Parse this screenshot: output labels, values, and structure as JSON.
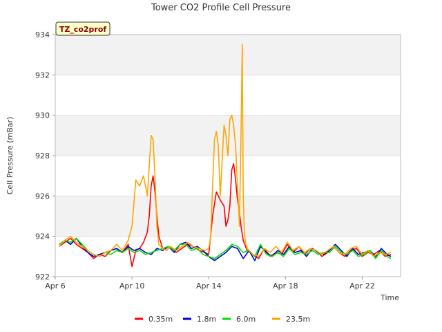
{
  "chart_data": {
    "type": "line",
    "title": "Tower CO2 Profile Cell Pressure",
    "xlabel": "Time",
    "ylabel": "Cell Pressure (mBar)",
    "site_tag": "TZ_co2prof",
    "xlim": [
      6,
      24
    ],
    "ylim": [
      922,
      934
    ],
    "x_ticks": [
      {
        "value": 6,
        "label": "Apr 6"
      },
      {
        "value": 10,
        "label": "Apr 10"
      },
      {
        "value": 14,
        "label": "Apr 14"
      },
      {
        "value": 18,
        "label": "Apr 18"
      },
      {
        "value": 22,
        "label": "Apr 22"
      }
    ],
    "y_ticks": [
      922,
      924,
      926,
      928,
      930,
      932,
      934
    ],
    "grid": true,
    "legend_position": "bottom-center",
    "series": [
      {
        "name": "0.35m",
        "color": "#ff0000",
        "x": [
          6.2,
          6.5,
          6.8,
          7.1,
          7.4,
          7.7,
          8.0,
          8.3,
          8.6,
          8.9,
          9.2,
          9.5,
          9.8,
          10.0,
          10.2,
          10.4,
          10.6,
          10.8,
          10.9,
          11.0,
          11.1,
          11.2,
          11.3,
          11.4,
          11.6,
          11.8,
          12.0,
          12.3,
          12.6,
          12.9,
          13.2,
          13.5,
          13.8,
          14.0,
          14.2,
          14.4,
          14.6,
          14.8,
          14.9,
          15.0,
          15.1,
          15.2,
          15.3,
          15.4,
          15.5,
          15.6,
          15.7,
          15.8,
          16.0,
          16.3,
          16.6,
          16.9,
          17.2,
          17.5,
          17.8,
          18.1,
          18.4,
          18.7,
          19.0,
          19.3,
          19.6,
          19.9,
          20.2,
          20.5,
          20.8,
          21.1,
          21.4,
          21.7,
          22.0,
          22.3,
          22.6,
          22.9,
          23.2,
          23.5
        ],
        "y": [
          923.5,
          923.7,
          923.9,
          923.6,
          923.4,
          923.2,
          922.9,
          923.1,
          923.0,
          923.3,
          923.4,
          923.2,
          923.6,
          922.5,
          923.3,
          923.4,
          923.7,
          924.2,
          925.0,
          926.5,
          927.0,
          926.2,
          925.0,
          924.0,
          923.4,
          923.3,
          923.5,
          923.2,
          923.4,
          923.6,
          923.5,
          923.3,
          923.2,
          923.1,
          925.0,
          926.2,
          925.8,
          925.5,
          924.5,
          924.8,
          925.5,
          927.3,
          927.6,
          926.8,
          925.8,
          925.2,
          924.4,
          923.8,
          923.3,
          923.1,
          922.9,
          923.4,
          923.0,
          923.2,
          923.1,
          923.6,
          923.2,
          923.5,
          923.1,
          923.4,
          923.3,
          923.0,
          923.2,
          923.5,
          923.2,
          923.0,
          923.3,
          923.4,
          923.0,
          923.2,
          923.1,
          923.3,
          923.0,
          923.1
        ]
      },
      {
        "name": "1.8m",
        "color": "#0000cc",
        "x": [
          6.2,
          6.5,
          6.8,
          7.1,
          7.4,
          7.7,
          8.0,
          8.3,
          8.6,
          8.9,
          9.2,
          9.5,
          9.8,
          10.1,
          10.4,
          10.7,
          11.0,
          11.3,
          11.6,
          11.9,
          12.2,
          12.5,
          12.8,
          13.1,
          13.4,
          13.7,
          14.0,
          14.3,
          14.6,
          14.9,
          15.2,
          15.5,
          15.8,
          16.1,
          16.4,
          16.7,
          17.0,
          17.3,
          17.6,
          17.9,
          18.2,
          18.5,
          18.8,
          19.1,
          19.4,
          19.7,
          20.0,
          20.3,
          20.6,
          20.9,
          21.2,
          21.5,
          21.8,
          22.1,
          22.4,
          22.7,
          23.0,
          23.3,
          23.5
        ],
        "y": [
          923.5,
          923.8,
          923.6,
          923.9,
          923.5,
          923.2,
          923.0,
          923.1,
          923.2,
          923.3,
          923.4,
          923.2,
          923.5,
          923.3,
          923.4,
          923.2,
          923.1,
          923.4,
          923.3,
          923.5,
          923.2,
          923.6,
          923.7,
          923.4,
          923.5,
          923.3,
          923.0,
          922.8,
          923.0,
          923.2,
          923.5,
          923.4,
          922.9,
          923.3,
          922.8,
          923.5,
          923.2,
          923.0,
          923.3,
          923.1,
          923.5,
          923.2,
          923.3,
          923.0,
          923.4,
          923.2,
          923.1,
          923.3,
          923.6,
          923.3,
          923.0,
          923.4,
          923.1,
          923.2,
          923.3,
          923.0,
          923.4,
          923.1,
          923.0
        ]
      },
      {
        "name": "6.0m",
        "color": "#00dd00",
        "x": [
          6.2,
          6.5,
          6.8,
          7.1,
          7.4,
          7.7,
          8.0,
          8.3,
          8.6,
          8.9,
          9.2,
          9.5,
          9.8,
          10.1,
          10.4,
          10.7,
          11.0,
          11.3,
          11.6,
          11.9,
          12.2,
          12.5,
          12.8,
          13.1,
          13.4,
          13.7,
          14.0,
          14.3,
          14.6,
          14.9,
          15.2,
          15.5,
          15.8,
          16.1,
          16.4,
          16.7,
          17.0,
          17.3,
          17.6,
          17.9,
          18.2,
          18.5,
          18.8,
          19.1,
          19.4,
          19.7,
          20.0,
          20.3,
          20.6,
          20.9,
          21.2,
          21.5,
          21.8,
          22.1,
          22.4,
          22.7,
          23.0,
          23.3,
          23.5
        ],
        "y": [
          923.6,
          923.8,
          923.7,
          923.9,
          923.6,
          923.3,
          923.1,
          923.0,
          923.2,
          923.1,
          923.3,
          923.2,
          923.4,
          923.2,
          923.3,
          923.1,
          923.2,
          923.3,
          923.4,
          923.5,
          923.3,
          923.6,
          923.6,
          923.3,
          923.4,
          923.1,
          923.0,
          922.9,
          923.1,
          923.3,
          923.6,
          923.5,
          923.2,
          923.3,
          923.0,
          923.6,
          923.1,
          923.0,
          923.2,
          923.0,
          923.4,
          923.1,
          923.2,
          923.1,
          923.3,
          923.1,
          923.2,
          923.2,
          923.5,
          923.2,
          923.1,
          923.3,
          923.0,
          923.1,
          923.3,
          922.9,
          923.3,
          923.0,
          922.9
        ]
      },
      {
        "name": "23.5m",
        "color": "#ffa500",
        "x": [
          6.2,
          6.5,
          6.8,
          7.1,
          7.4,
          7.7,
          8.0,
          8.3,
          8.6,
          8.9,
          9.2,
          9.5,
          9.8,
          10.0,
          10.2,
          10.4,
          10.6,
          10.8,
          10.9,
          11.0,
          11.1,
          11.2,
          11.3,
          11.4,
          11.6,
          11.8,
          12.0,
          12.3,
          12.6,
          12.9,
          13.2,
          13.5,
          13.8,
          14.0,
          14.1,
          14.2,
          14.3,
          14.4,
          14.5,
          14.6,
          14.8,
          14.9,
          15.0,
          15.1,
          15.2,
          15.3,
          15.4,
          15.5,
          15.6,
          15.7,
          15.75,
          15.8,
          15.85,
          15.9,
          16.0,
          16.3,
          16.6,
          16.9,
          17.2,
          17.5,
          17.8,
          18.1,
          18.4,
          18.7,
          19.0,
          19.3,
          19.6,
          19.9,
          20.2,
          20.5,
          20.8,
          21.1,
          21.4,
          21.7,
          22.0,
          22.3,
          22.6,
          22.9,
          23.2,
          23.5
        ],
        "y": [
          923.5,
          923.8,
          924.0,
          923.7,
          923.5,
          923.3,
          923.1,
          923.0,
          923.2,
          923.3,
          923.6,
          923.3,
          923.8,
          924.5,
          926.8,
          926.5,
          927.0,
          926.0,
          927.5,
          929.0,
          928.8,
          927.0,
          924.5,
          923.6,
          923.4,
          923.3,
          923.5,
          923.3,
          923.5,
          923.7,
          923.5,
          923.4,
          923.3,
          923.4,
          924.0,
          926.5,
          928.8,
          929.2,
          928.5,
          926.0,
          929.5,
          929.0,
          928.0,
          929.8,
          930.0,
          929.5,
          928.5,
          926.5,
          924.5,
          930.0,
          933.5,
          926.0,
          924.5,
          923.8,
          923.4,
          923.1,
          923.0,
          923.4,
          923.2,
          923.5,
          923.2,
          923.7,
          923.3,
          923.5,
          923.2,
          923.4,
          923.3,
          923.1,
          923.3,
          923.5,
          923.2,
          923.1,
          923.4,
          923.5,
          923.1,
          923.3,
          923.0,
          923.2,
          923.1,
          923.2
        ]
      }
    ]
  }
}
